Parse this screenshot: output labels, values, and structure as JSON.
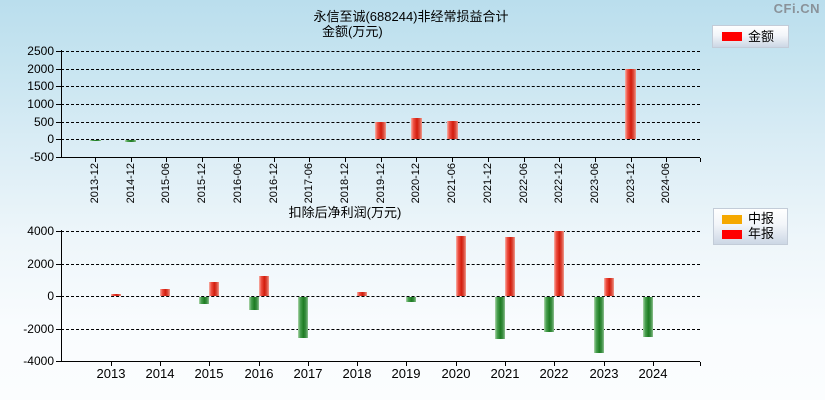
{
  "page": {
    "watermark": "CFi.CN"
  },
  "chart_data": [
    {
      "type": "bar",
      "title": "永信至诚(688244)非经常损益合计",
      "subtitle": "金额(万元)",
      "xlabel": "",
      "ylabel": "金额(万元)",
      "ylim": [
        -500,
        2500
      ],
      "yticks": [
        2500,
        2000,
        1500,
        1000,
        500,
        0,
        -500
      ],
      "grid": true,
      "legend_position": "top-right",
      "legend": [
        {
          "label": "金额",
          "color": "#ff0000"
        }
      ],
      "categories": [
        "2013-12",
        "2014-12",
        "2015-06",
        "2015-12",
        "2016-06",
        "2016-12",
        "2017-06",
        "2018-12",
        "2019-12",
        "2020-12",
        "2021-06",
        "2021-12",
        "2022-06",
        "2022-12",
        "2023-06",
        "2023-12",
        "2024-06"
      ],
      "series": [
        {
          "name": "金额",
          "values": [
            -30,
            -50,
            null,
            null,
            null,
            null,
            null,
            null,
            480,
            600,
            520,
            null,
            null,
            null,
            null,
            1990,
            null
          ]
        }
      ],
      "colors": {
        "positive": "#d21c0c",
        "negative": "#1d7c22"
      }
    },
    {
      "type": "bar",
      "title": "扣除后净利润(万元)",
      "xlabel": "",
      "ylabel": "扣除后净利润(万元)",
      "ylim": [
        -4000,
        4000
      ],
      "yticks": [
        4000,
        2000,
        0,
        -2000,
        -4000
      ],
      "grid": true,
      "legend_position": "top-right",
      "legend": [
        {
          "label": "中报",
          "color": "#f5a800"
        },
        {
          "label": "年报",
          "color": "#ff0000"
        }
      ],
      "categories": [
        "2013",
        "2014",
        "2015",
        "2016",
        "2017",
        "2018",
        "2019",
        "2020",
        "2021",
        "2022",
        "2023",
        "2024"
      ],
      "series": [
        {
          "name": "中报",
          "color": "#f5a800",
          "values": [
            null,
            null,
            -460,
            -830,
            -2530,
            null,
            null,
            null,
            -2560,
            -2160,
            -3430,
            -2470
          ]
        },
        {
          "name": "年报",
          "color": "#ff0000",
          "values": [
            150,
            400,
            870,
            1200,
            null,
            250,
            -280,
            3700,
            3640,
            3980,
            1100,
            null
          ]
        }
      ],
      "colors": {
        "positive_annual": "#d21c0c",
        "positive_interim": "#e89a00",
        "negative": "#1d7c22"
      }
    }
  ]
}
